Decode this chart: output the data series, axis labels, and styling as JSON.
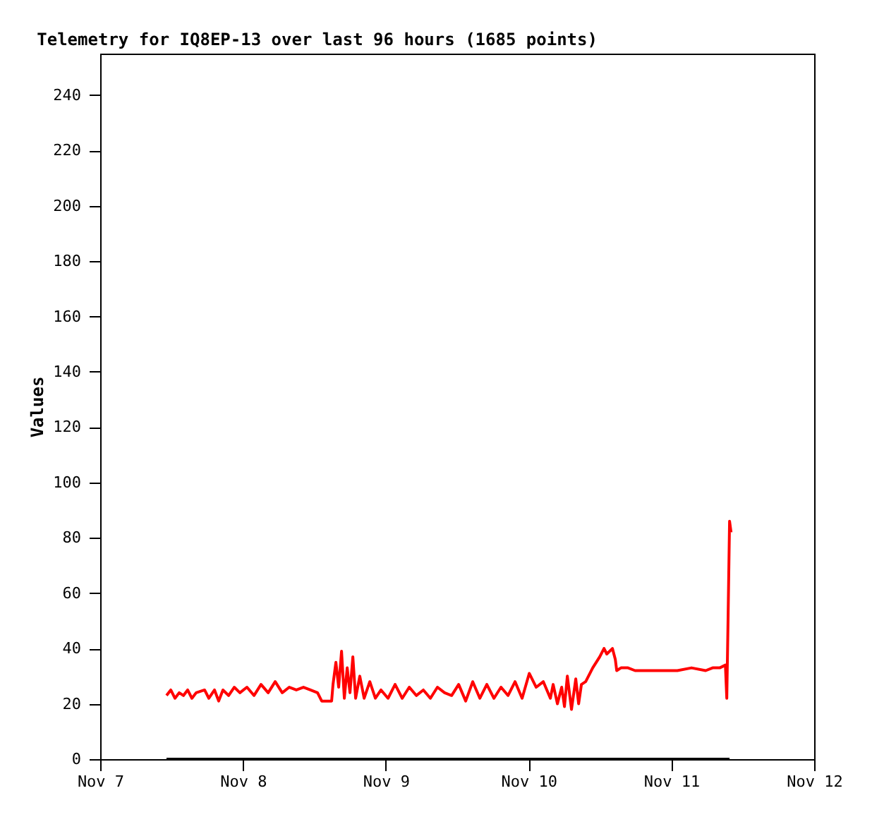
{
  "chart_data": {
    "type": "line",
    "title": "Telemetry for IQ8EP-13 over last 96 hours (1685 points)",
    "ylabel": "Values",
    "x": [
      "--11-07T11:09",
      "--11-07T11:52",
      "--11-07T12:34",
      "--11-07T13:17",
      "--11-07T14:00",
      "--11-07T14:42",
      "--11-07T15:25",
      "--11-07T16:08",
      "--11-07T17:33",
      "--11-07T18:16",
      "--11-07T19:13",
      "--11-07T19:55",
      "--11-07T20:38",
      "--11-07T21:35",
      "--11-07T22:32",
      "--11-07T23:29",
      "--11-08T00:40",
      "--11-08T01:51",
      "--11-08T03:02",
      "--11-08T04:14",
      "--11-08T05:25",
      "--11-08T06:36",
      "--11-08T07:47",
      "--11-08T08:58",
      "--11-08T10:10",
      "--11-08T11:20",
      "--11-08T12:32",
      "--11-08T13:14",
      "--11-08T14:54",
      "--11-08T15:08",
      "--11-08T15:37",
      "--11-08T16:05",
      "--11-08T16:34",
      "--11-08T17:02",
      "--11-08T17:31",
      "--11-08T17:59",
      "--11-08T18:28",
      "--11-08T18:56",
      "--11-08T19:38",
      "--11-08T20:22",
      "--11-08T21:19",
      "--11-08T22:15",
      "--11-08T23:12",
      "--11-09T00:23",
      "--11-09T01:34",
      "--11-09T02:46",
      "--11-09T03:57",
      "--11-09T05:08",
      "--11-09T06:19",
      "--11-09T07:30",
      "--11-09T08:41",
      "--11-09T09:53",
      "--11-09T11:04",
      "--11-09T12:15",
      "--11-09T13:26",
      "--11-09T14:37",
      "--11-09T15:49",
      "--11-09T16:59",
      "--11-09T18:11",
      "--11-09T19:22",
      "--11-09T20:33",
      "--11-09T21:44",
      "--11-09T22:55",
      "--11-10T00:07",
      "--11-10T01:17",
      "--11-10T02:29",
      "--11-10T03:40",
      "--11-10T04:08",
      "--11-10T04:51",
      "--11-10T05:34",
      "--11-10T06:02",
      "--11-10T06:31",
      "--11-10T07:13",
      "--11-10T07:56",
      "--11-10T08:25",
      "--11-10T08:53",
      "--11-10T09:36",
      "--11-10T10:47",
      "--11-10T11:58",
      "--11-10T12:41",
      "--11-10T13:09",
      "--11-10T14:06",
      "--11-10T14:35",
      "--11-10T14:49",
      "--11-10T15:32",
      "--11-10T16:43",
      "--11-10T17:54",
      "--11-10T20:16",
      "--11-10T22:38",
      "--11-11T01:01",
      "--11-11T03:23",
      "--11-11T05:46",
      "--11-11T06:56",
      "--11-11T08:08",
      "--11-11T09:05",
      "--11-11T09:19",
      "--11-11T09:33",
      "--11-11T09:47",
      "--11-11T10:02"
    ],
    "series": [
      {
        "color": "#ff0000",
        "values": [
          23,
          25,
          22,
          24,
          23,
          25,
          22,
          24,
          25,
          22,
          25,
          21,
          25,
          23,
          26,
          24,
          26,
          23,
          27,
          24,
          28,
          24,
          26,
          25,
          26,
          25,
          24,
          21,
          21,
          27,
          35,
          26,
          39,
          22,
          33,
          24,
          37,
          22,
          30,
          22,
          28,
          22,
          25,
          22,
          27,
          22,
          26,
          23,
          25,
          22,
          26,
          24,
          23,
          27,
          21,
          28,
          22,
          27,
          22,
          26,
          23,
          28,
          22,
          31,
          26,
          28,
          22,
          27,
          20,
          26,
          19,
          30,
          18,
          29,
          20,
          27,
          28,
          33,
          37,
          40,
          38,
          40,
          36,
          32,
          33,
          33,
          32,
          32,
          32,
          32,
          33,
          32,
          33,
          33,
          34,
          22,
          53,
          86,
          82
        ]
      },
      {
        "color": "#000000",
        "x": [
          "--11-07T11:09",
          "--11-11T09:47"
        ],
        "values": [
          0,
          0
        ]
      }
    ],
    "xlim": [
      "--11-07",
      "--11-12"
    ],
    "xticks": [
      {
        "value": "--11-07",
        "label": "Nov 7"
      },
      {
        "value": "--11-08",
        "label": "Nov 8"
      },
      {
        "value": "--11-09",
        "label": "Nov 9"
      },
      {
        "value": "--11-10",
        "label": "Nov 10"
      },
      {
        "value": "--11-11",
        "label": "Nov 11"
      },
      {
        "value": "--11-12",
        "label": "Nov 12"
      }
    ],
    "ylim": [
      0,
      255
    ],
    "yticks": [
      0,
      20,
      40,
      60,
      80,
      100,
      120,
      140,
      160,
      180,
      200,
      220,
      240
    ],
    "line_style": "solid",
    "marker": "none"
  }
}
